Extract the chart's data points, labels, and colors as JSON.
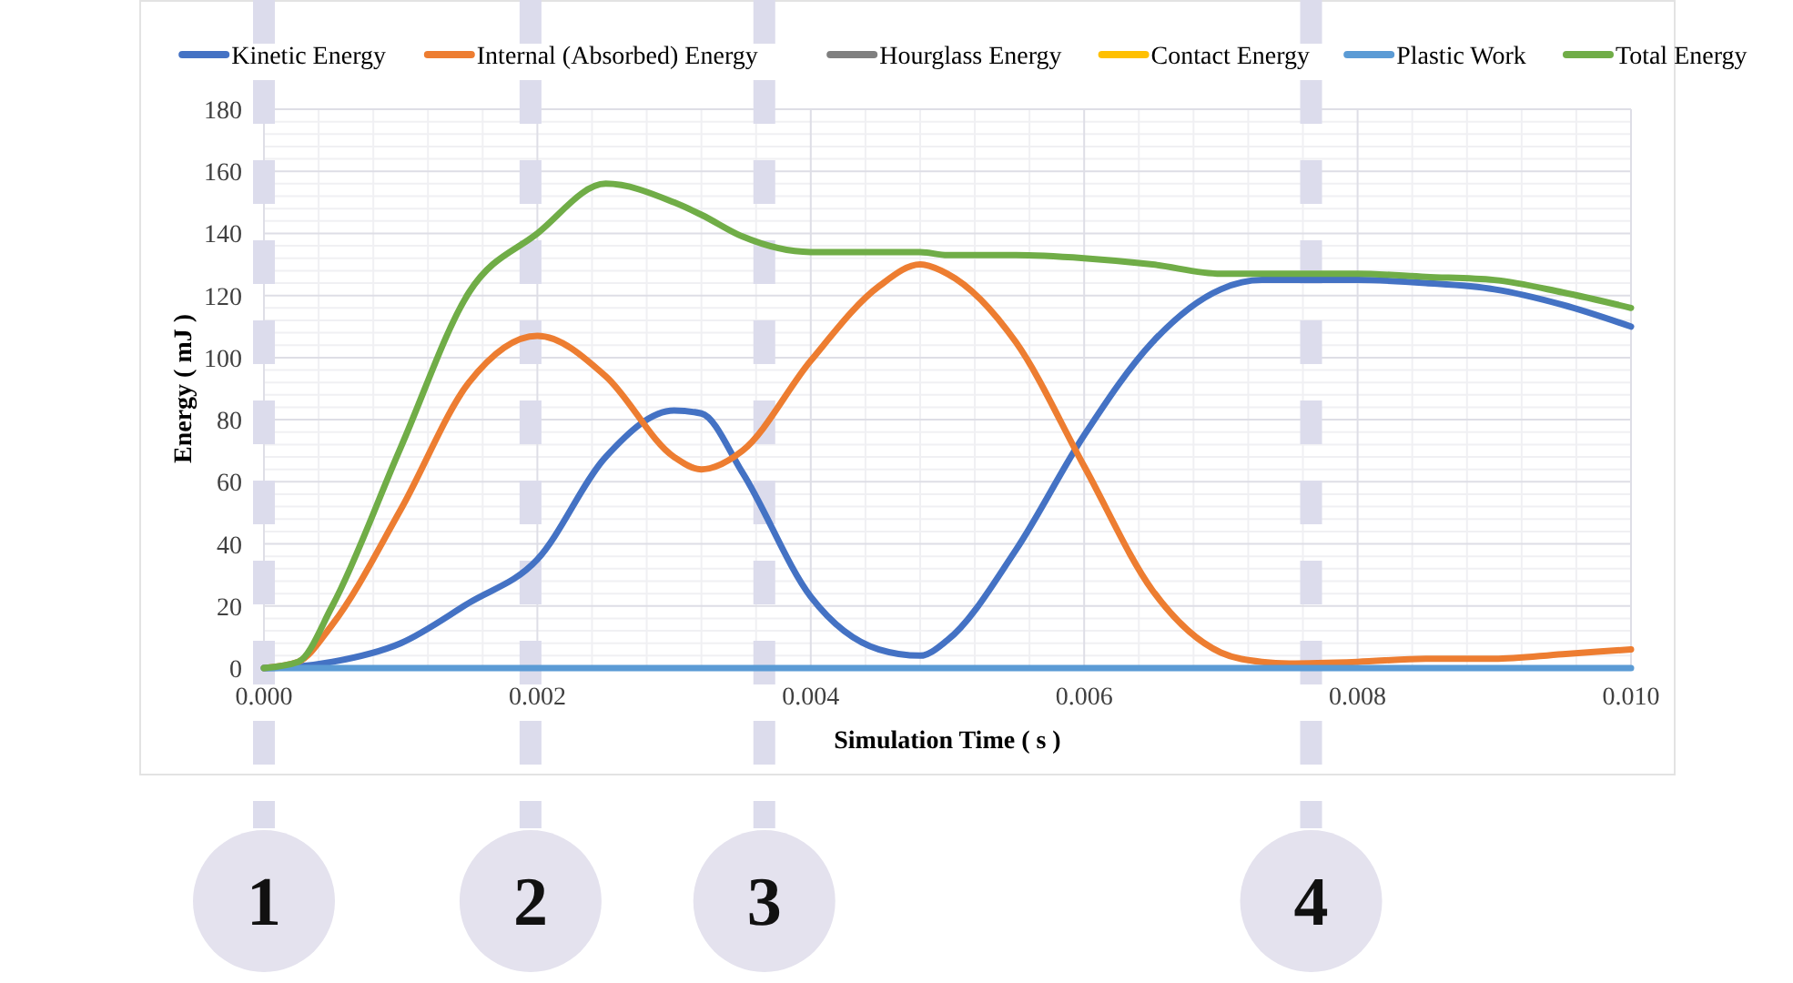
{
  "chart_data": {
    "type": "line",
    "xlabel": "Simulation Time ( s )",
    "ylabel": "Energy ( mJ )",
    "x": [
      0,
      0.00025,
      0.0005,
      0.001,
      0.0015,
      0.002,
      0.0025,
      0.003,
      0.0032,
      0.0035,
      0.004,
      0.0045,
      0.0048,
      0.005,
      0.0055,
      0.006,
      0.0065,
      0.007,
      0.0073,
      0.0075,
      0.008,
      0.0085,
      0.009,
      0.0095,
      0.01
    ],
    "series": [
      {
        "name": "Kinetic Energy",
        "color": "#4472c4",
        "values": [
          0,
          0.5,
          2,
          8,
          21,
          35,
          68,
          83,
          82,
          63,
          23,
          6,
          4,
          9,
          38,
          75,
          105,
          122,
          125,
          125,
          125,
          124,
          122,
          117,
          110
        ]
      },
      {
        "name": "Internal (Absorbed) Energy",
        "color": "#ed7d31",
        "values": [
          0,
          2,
          14,
          51,
          92,
          107,
          94,
          68,
          64,
          70,
          99,
          123,
          130,
          127,
          105,
          65,
          25,
          5,
          2,
          1.5,
          2,
          3,
          3,
          4.5,
          6
        ]
      },
      {
        "name": "Hourglass Energy",
        "color": "#7f7f7f",
        "values": [
          null,
          null,
          null,
          null,
          null,
          null,
          null,
          null,
          null,
          null,
          null,
          null,
          null,
          null,
          null,
          null,
          null,
          null,
          null,
          null,
          null,
          null,
          null,
          null,
          null
        ]
      },
      {
        "name": "Contact Energy",
        "color": "#ffc000",
        "values": [
          null,
          null,
          null,
          null,
          null,
          null,
          null,
          null,
          null,
          null,
          null,
          null,
          null,
          null,
          null,
          null,
          null,
          null,
          null,
          null,
          null,
          null,
          null,
          null,
          null
        ]
      },
      {
        "name": "Plastic Work",
        "color": "#5b9bd5",
        "x": [
          0,
          0.01
        ],
        "values": [
          0,
          0
        ]
      },
      {
        "name": "Total Energy",
        "color": "#70ad47",
        "values": [
          0,
          2,
          20,
          71,
          121,
          140,
          156,
          150,
          146,
          139,
          134,
          134,
          134,
          133,
          133,
          132,
          130,
          127,
          127,
          127,
          127,
          126,
          125,
          121,
          116
        ]
      }
    ],
    "xlim": [
      0,
      0.01
    ],
    "xticks": [
      {
        "value": 0,
        "label": "0.000"
      },
      {
        "value": 0.002,
        "label": "0.002"
      },
      {
        "value": 0.004,
        "label": "0.004"
      },
      {
        "value": 0.006,
        "label": "0.006"
      },
      {
        "value": 0.008,
        "label": "0.008"
      },
      {
        "value": 0.01,
        "label": "0.010"
      }
    ],
    "ylim": [
      0,
      180
    ],
    "yticks": [
      0,
      20,
      40,
      60,
      80,
      100,
      120,
      140,
      160,
      180
    ],
    "grid": true,
    "legend": "top",
    "line_style": "solid",
    "marker": "none",
    "ref_lines": [
      {
        "axis": "x",
        "value": 0,
        "color": "#dcdcec",
        "line_style": "dashed"
      },
      {
        "axis": "x",
        "value": 0.00195,
        "color": "#dcdcec",
        "line_style": "dashed"
      },
      {
        "axis": "x",
        "value": 0.00366,
        "color": "#dcdcec",
        "line_style": "dashed"
      },
      {
        "axis": "x",
        "value": 0.00766,
        "color": "#dcdcec",
        "line_style": "dashed"
      }
    ],
    "annotations": [
      "1",
      "2",
      "3",
      "4"
    ]
  }
}
